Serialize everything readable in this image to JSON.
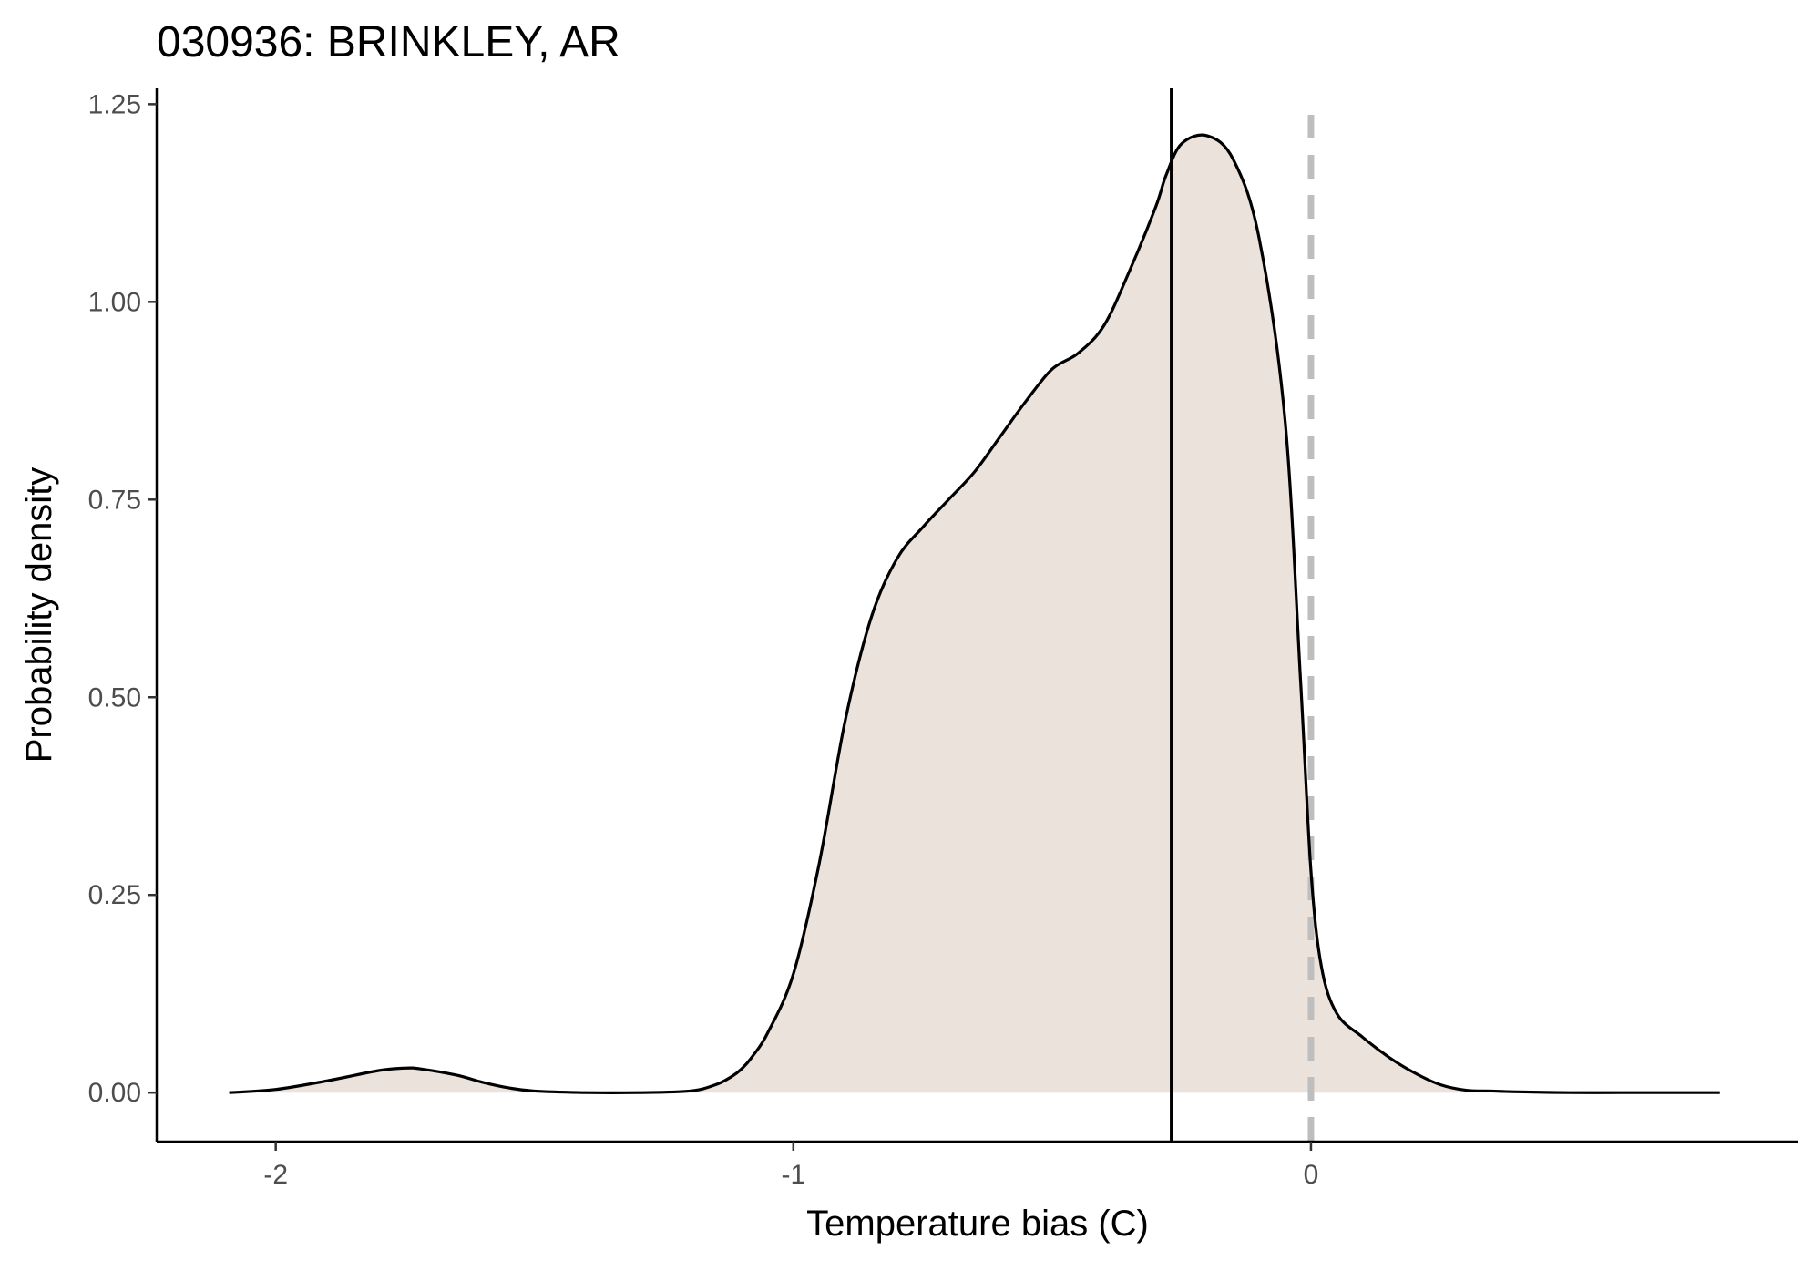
{
  "chart_data": {
    "type": "area",
    "title": "030936: BRINKLEY, AR",
    "xlabel": "Temperature bias (C)",
    "ylabel": "Probability density",
    "xlim": [
      -2.23,
      0.94
    ],
    "ylim": [
      -0.062,
      1.27
    ],
    "x_ticks": [
      -2,
      -1,
      0
    ],
    "x_tick_labels": [
      "-2",
      "-1",
      "0"
    ],
    "y_ticks": [
      0,
      0.25,
      0.5,
      0.75,
      1.0,
      1.25
    ],
    "y_tick_labels": [
      "0.00",
      "0.25",
      "0.50",
      "0.75",
      "1.00",
      "1.25"
    ],
    "grid": false,
    "legend": "none",
    "series": [
      {
        "x": [
          -2.09,
          -2.0,
          -1.9,
          -1.8,
          -1.75,
          -1.72,
          -1.65,
          -1.6,
          -1.55,
          -1.5,
          -1.4,
          -1.3,
          -1.2,
          -1.15,
          -1.12,
          -1.1,
          -1.08,
          -1.05,
          -1.0,
          -0.95,
          -0.9,
          -0.85,
          -0.8,
          -0.75,
          -0.7,
          -0.65,
          -0.6,
          -0.55,
          -0.5,
          -0.45,
          -0.4,
          -0.35,
          -0.3,
          -0.28,
          -0.25,
          -0.2,
          -0.15,
          -0.1,
          -0.05,
          -0.02,
          0.0,
          0.02,
          0.05,
          0.1,
          0.15,
          0.2,
          0.25,
          0.3,
          0.35,
          0.4,
          0.5,
          0.6,
          0.7,
          0.79
        ],
        "y": [
          0.0,
          0.004,
          0.015,
          0.028,
          0.031,
          0.03,
          0.022,
          0.013,
          0.006,
          0.002,
          0.0,
          0.0,
          0.002,
          0.01,
          0.02,
          0.03,
          0.045,
          0.075,
          0.15,
          0.29,
          0.47,
          0.6,
          0.675,
          0.715,
          0.75,
          0.785,
          0.83,
          0.875,
          0.915,
          0.935,
          0.97,
          1.04,
          1.12,
          1.16,
          1.2,
          1.21,
          1.18,
          1.08,
          0.85,
          0.52,
          0.28,
          0.16,
          0.1,
          0.07,
          0.045,
          0.025,
          0.01,
          0.003,
          0.002,
          0.001,
          0.0,
          0.0,
          0.0,
          0.0
        ]
      }
    ],
    "vlines": [
      {
        "x": -0.27,
        "style": "solid",
        "color": "#000000"
      },
      {
        "x": 0.0,
        "style": "dashed",
        "color": "#bebebe"
      }
    ],
    "fill_color": "#ece2dc",
    "line_color": "#000000"
  }
}
